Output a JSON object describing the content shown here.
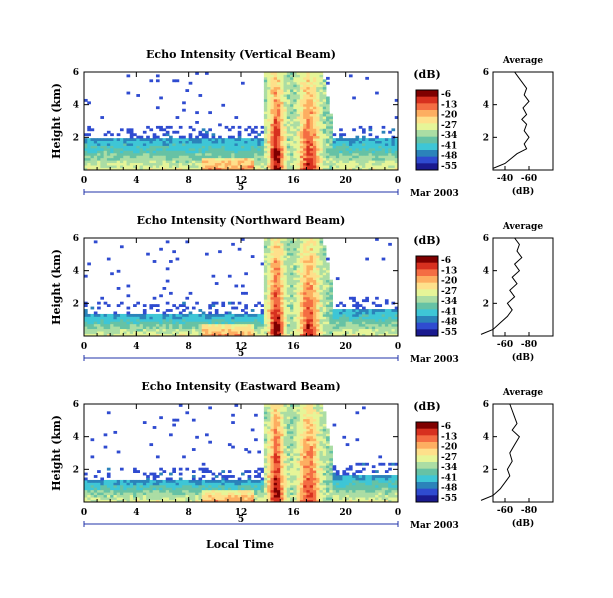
{
  "figure": {
    "xlabel": "Local Time",
    "date_label": "Mar 2003",
    "day_label": "5",
    "unit_label": "(dB)",
    "colorbar_ticks": [
      "-6",
      "-13",
      "-20",
      "-27",
      "-34",
      "-41",
      "-48",
      "-55"
    ],
    "colorbar_colors": [
      "#7f0000",
      "#d7301f",
      "#f46d43",
      "#fdae61",
      "#fee08b",
      "#e6f598",
      "#abdda4",
      "#66c2a5",
      "#3ec6d6",
      "#2b83ba",
      "#2f4bd0",
      "#1a1a8f"
    ]
  },
  "chart_data": [
    {
      "type": "heatmap",
      "title": "Echo Intensity (Vertical Beam)",
      "ylabel": "Height (km)",
      "xlim": [
        0,
        24
      ],
      "ylim": [
        0,
        6
      ],
      "xticks": [
        "0",
        "4",
        "8",
        "12",
        "16",
        "20",
        "0"
      ],
      "yticks": [
        "2",
        "4",
        "6"
      ],
      "profile": {
        "title": "Average",
        "xlabel": "(dB)",
        "xticks": [
          "-40",
          "-60"
        ],
        "ylim": [
          0,
          6
        ],
        "yticks": [
          "2",
          "4",
          "6"
        ],
        "points": [
          [
            -30,
            0.1
          ],
          [
            -40,
            0.4
          ],
          [
            -45,
            0.7
          ],
          [
            -50,
            1.0
          ],
          [
            -58,
            1.3
          ],
          [
            -56,
            1.6
          ],
          [
            -60,
            2.0
          ],
          [
            -56,
            2.4
          ],
          [
            -58,
            2.8
          ],
          [
            -54,
            3.1
          ],
          [
            -58,
            3.4
          ],
          [
            -55,
            3.8
          ],
          [
            -60,
            4.2
          ],
          [
            -56,
            4.6
          ],
          [
            -58,
            5.0
          ],
          [
            -54,
            5.4
          ],
          [
            -50,
            5.8
          ],
          [
            -48,
            6.0
          ]
        ]
      }
    },
    {
      "type": "heatmap",
      "title": "Echo Intensity (Northward Beam)",
      "ylabel": "Height (km)",
      "xlim": [
        0,
        24
      ],
      "ylim": [
        0,
        6
      ],
      "xticks": [
        "0",
        "4",
        "8",
        "12",
        "16",
        "20",
        "0"
      ],
      "yticks": [
        "2",
        "4",
        "6"
      ],
      "profile": {
        "title": "Average",
        "xlabel": "(dB)",
        "xticks": [
          "-60",
          "-80"
        ],
        "ylim": [
          0,
          6
        ],
        "yticks": [
          "2",
          "4",
          "6"
        ],
        "points": [
          [
            -40,
            0.1
          ],
          [
            -50,
            0.4
          ],
          [
            -56,
            0.8
          ],
          [
            -62,
            1.2
          ],
          [
            -66,
            1.6
          ],
          [
            -62,
            2.0
          ],
          [
            -68,
            2.4
          ],
          [
            -64,
            2.8
          ],
          [
            -70,
            3.2
          ],
          [
            -66,
            3.6
          ],
          [
            -72,
            4.0
          ],
          [
            -68,
            4.4
          ],
          [
            -74,
            4.8
          ],
          [
            -70,
            5.2
          ],
          [
            -72,
            5.6
          ],
          [
            -68,
            6.0
          ]
        ]
      }
    },
    {
      "type": "heatmap",
      "title": "Echo Intensity (Eastward Beam)",
      "ylabel": "Height (km)",
      "xlim": [
        0,
        24
      ],
      "ylim": [
        0,
        6
      ],
      "xticks": [
        "0",
        "4",
        "8",
        "12",
        "16",
        "20",
        "0"
      ],
      "yticks": [
        "2",
        "4",
        "6"
      ],
      "profile": {
        "title": "Average",
        "xlabel": "(dB)",
        "xticks": [
          "-60",
          "-80"
        ],
        "ylim": [
          0,
          6
        ],
        "yticks": [
          "2",
          "4",
          "6"
        ],
        "points": [
          [
            -40,
            0.1
          ],
          [
            -50,
            0.4
          ],
          [
            -56,
            0.8
          ],
          [
            -60,
            1.2
          ],
          [
            -64,
            1.6
          ],
          [
            -62,
            2.0
          ],
          [
            -66,
            2.5
          ],
          [
            -64,
            3.0
          ],
          [
            -68,
            3.5
          ],
          [
            -72,
            4.0
          ],
          [
            -66,
            4.4
          ],
          [
            -70,
            4.8
          ],
          [
            -68,
            5.2
          ],
          [
            -66,
            5.6
          ],
          [
            -64,
            6.0
          ]
        ]
      }
    }
  ]
}
